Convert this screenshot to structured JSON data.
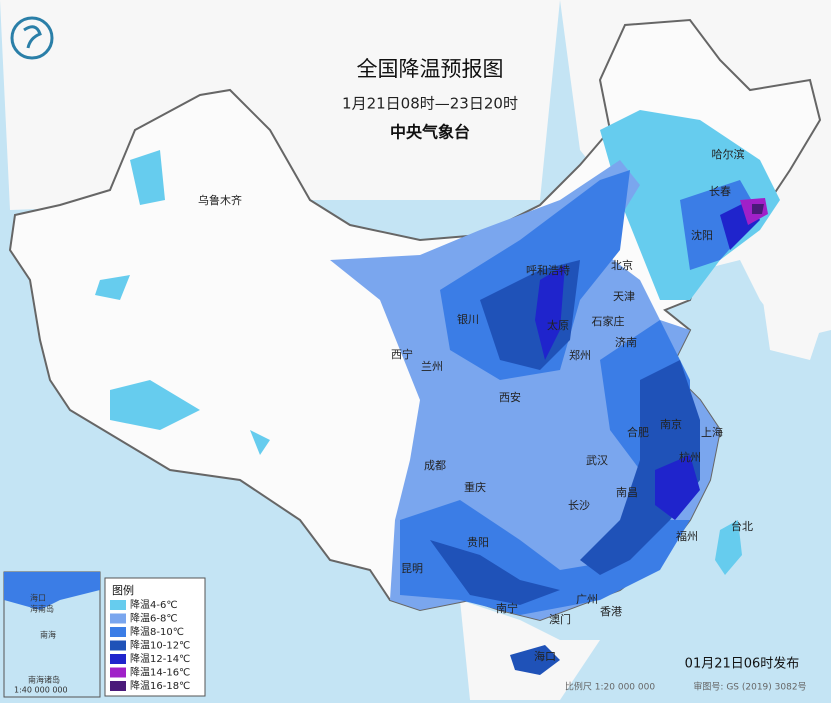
{
  "header": {
    "title": "全国降温预报图",
    "subtitle": "1月21日08时—23日20时",
    "issuer": "中央气象台"
  },
  "legend": {
    "title": "图例",
    "items": [
      {
        "label": "降温4-6℃",
        "color": "#66ccee"
      },
      {
        "label": "降温6-8℃",
        "color": "#7aa6ee"
      },
      {
        "label": "降温8-10℃",
        "color": "#3b7de6"
      },
      {
        "label": "降温10-12℃",
        "color": "#1f52b8"
      },
      {
        "label": "降温12-14℃",
        "color": "#1f24cc"
      },
      {
        "label": "降温14-16℃",
        "color": "#a020c8"
      },
      {
        "label": "降温16-18℃",
        "color": "#4a1a7a"
      }
    ]
  },
  "cities": [
    "乌鲁木齐",
    "哈尔滨",
    "长春",
    "沈阳",
    "呼和浩特",
    "北京",
    "天津",
    "银川",
    "太原",
    "石家庄",
    "济南",
    "西宁",
    "兰州",
    "郑州",
    "西安",
    "南京",
    "上海",
    "合肥",
    "杭州",
    "武汉",
    "成都",
    "南昌",
    "重庆",
    "长沙",
    "台北",
    "福州",
    "贵阳",
    "昆明",
    "广州",
    "南宁",
    "香港",
    "澳门",
    "海口"
  ],
  "inset": {
    "labels": [
      "海口",
      "海南岛",
      "南海",
      "南海诸岛",
      "1:40 000 000"
    ]
  },
  "footer": {
    "issued": "01月21日06时发布",
    "scale": "比例尺 1:20 000 000",
    "approval": "审图号: GS (2019) 3082号"
  }
}
